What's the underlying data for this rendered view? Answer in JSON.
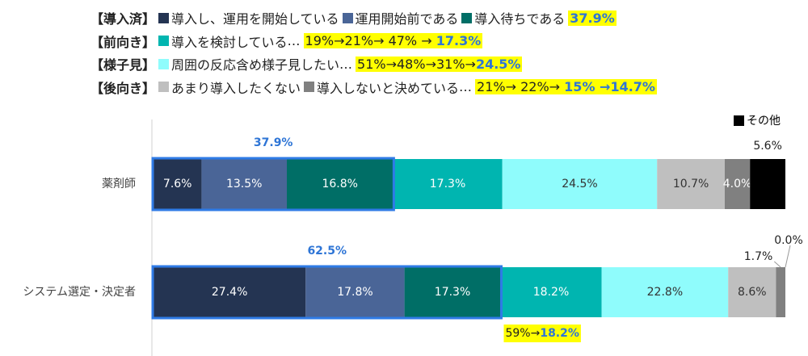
{
  "chart_data": {
    "type": "bar",
    "orientation": "horizontal",
    "stacked": "percent",
    "legend_groups": [
      {
        "label": "【導入済】",
        "ellipsis": "",
        "note": "",
        "note_emphasis": "37.9%"
      },
      {
        "label": "【前向き】",
        "ellipsis": "…",
        "note": "19%→21%→ 47% →",
        "note_emphasis": "17.3%"
      },
      {
        "label": "【様子見】",
        "ellipsis": "…",
        "note": "51%→48%→31%→",
        "note_emphasis": "24.5%"
      },
      {
        "label": "【後向き】",
        "ellipsis": "…",
        "note": "21%→ 22%→",
        "note_emphasis": "15% →14.7%"
      }
    ],
    "categories": [
      "薬剤師",
      "システム選定・決定者"
    ],
    "series": [
      {
        "name": "導入し、運用を開始している",
        "color": "#243452",
        "values": [
          7.6,
          27.4
        ],
        "value_labels": [
          "7.6%",
          "27.4%"
        ]
      },
      {
        "name": "運用開始前である",
        "color": "#4a6597",
        "values": [
          13.5,
          17.8
        ],
        "value_labels": [
          "13.5%",
          "17.8%"
        ]
      },
      {
        "name": "導入待ちである",
        "color": "#006e66",
        "values": [
          16.8,
          17.3
        ],
        "value_labels": [
          "16.8%",
          "17.3%"
        ]
      },
      {
        "name": "導入を検討している",
        "color": "#00b5b0",
        "values": [
          17.3,
          18.2
        ],
        "value_labels": [
          "17.3%",
          "18.2%"
        ]
      },
      {
        "name": "周囲の反応含め様子見したい",
        "color": "#8ffcfc",
        "values": [
          24.5,
          22.8
        ],
        "value_labels": [
          "24.5%",
          "22.8%"
        ]
      },
      {
        "name": "あまり導入したくない",
        "color": "#bfbfbf",
        "values": [
          10.7,
          8.6
        ],
        "value_labels": [
          "10.7%",
          "8.6%"
        ]
      },
      {
        "name": "導入しないと決めている",
        "color": "#808080",
        "values": [
          4.0,
          1.7
        ],
        "value_labels": [
          "4.0%",
          "1.7%"
        ]
      },
      {
        "name": "その他",
        "color": "#000000",
        "values": [
          5.6,
          0.0
        ],
        "value_labels": [
          "5.6%",
          "0.0%"
        ]
      }
    ],
    "group_totals": [
      "37.9%",
      "62.5%"
    ],
    "below_note": {
      "text": "59%→",
      "emphasis": "18.2%"
    }
  }
}
